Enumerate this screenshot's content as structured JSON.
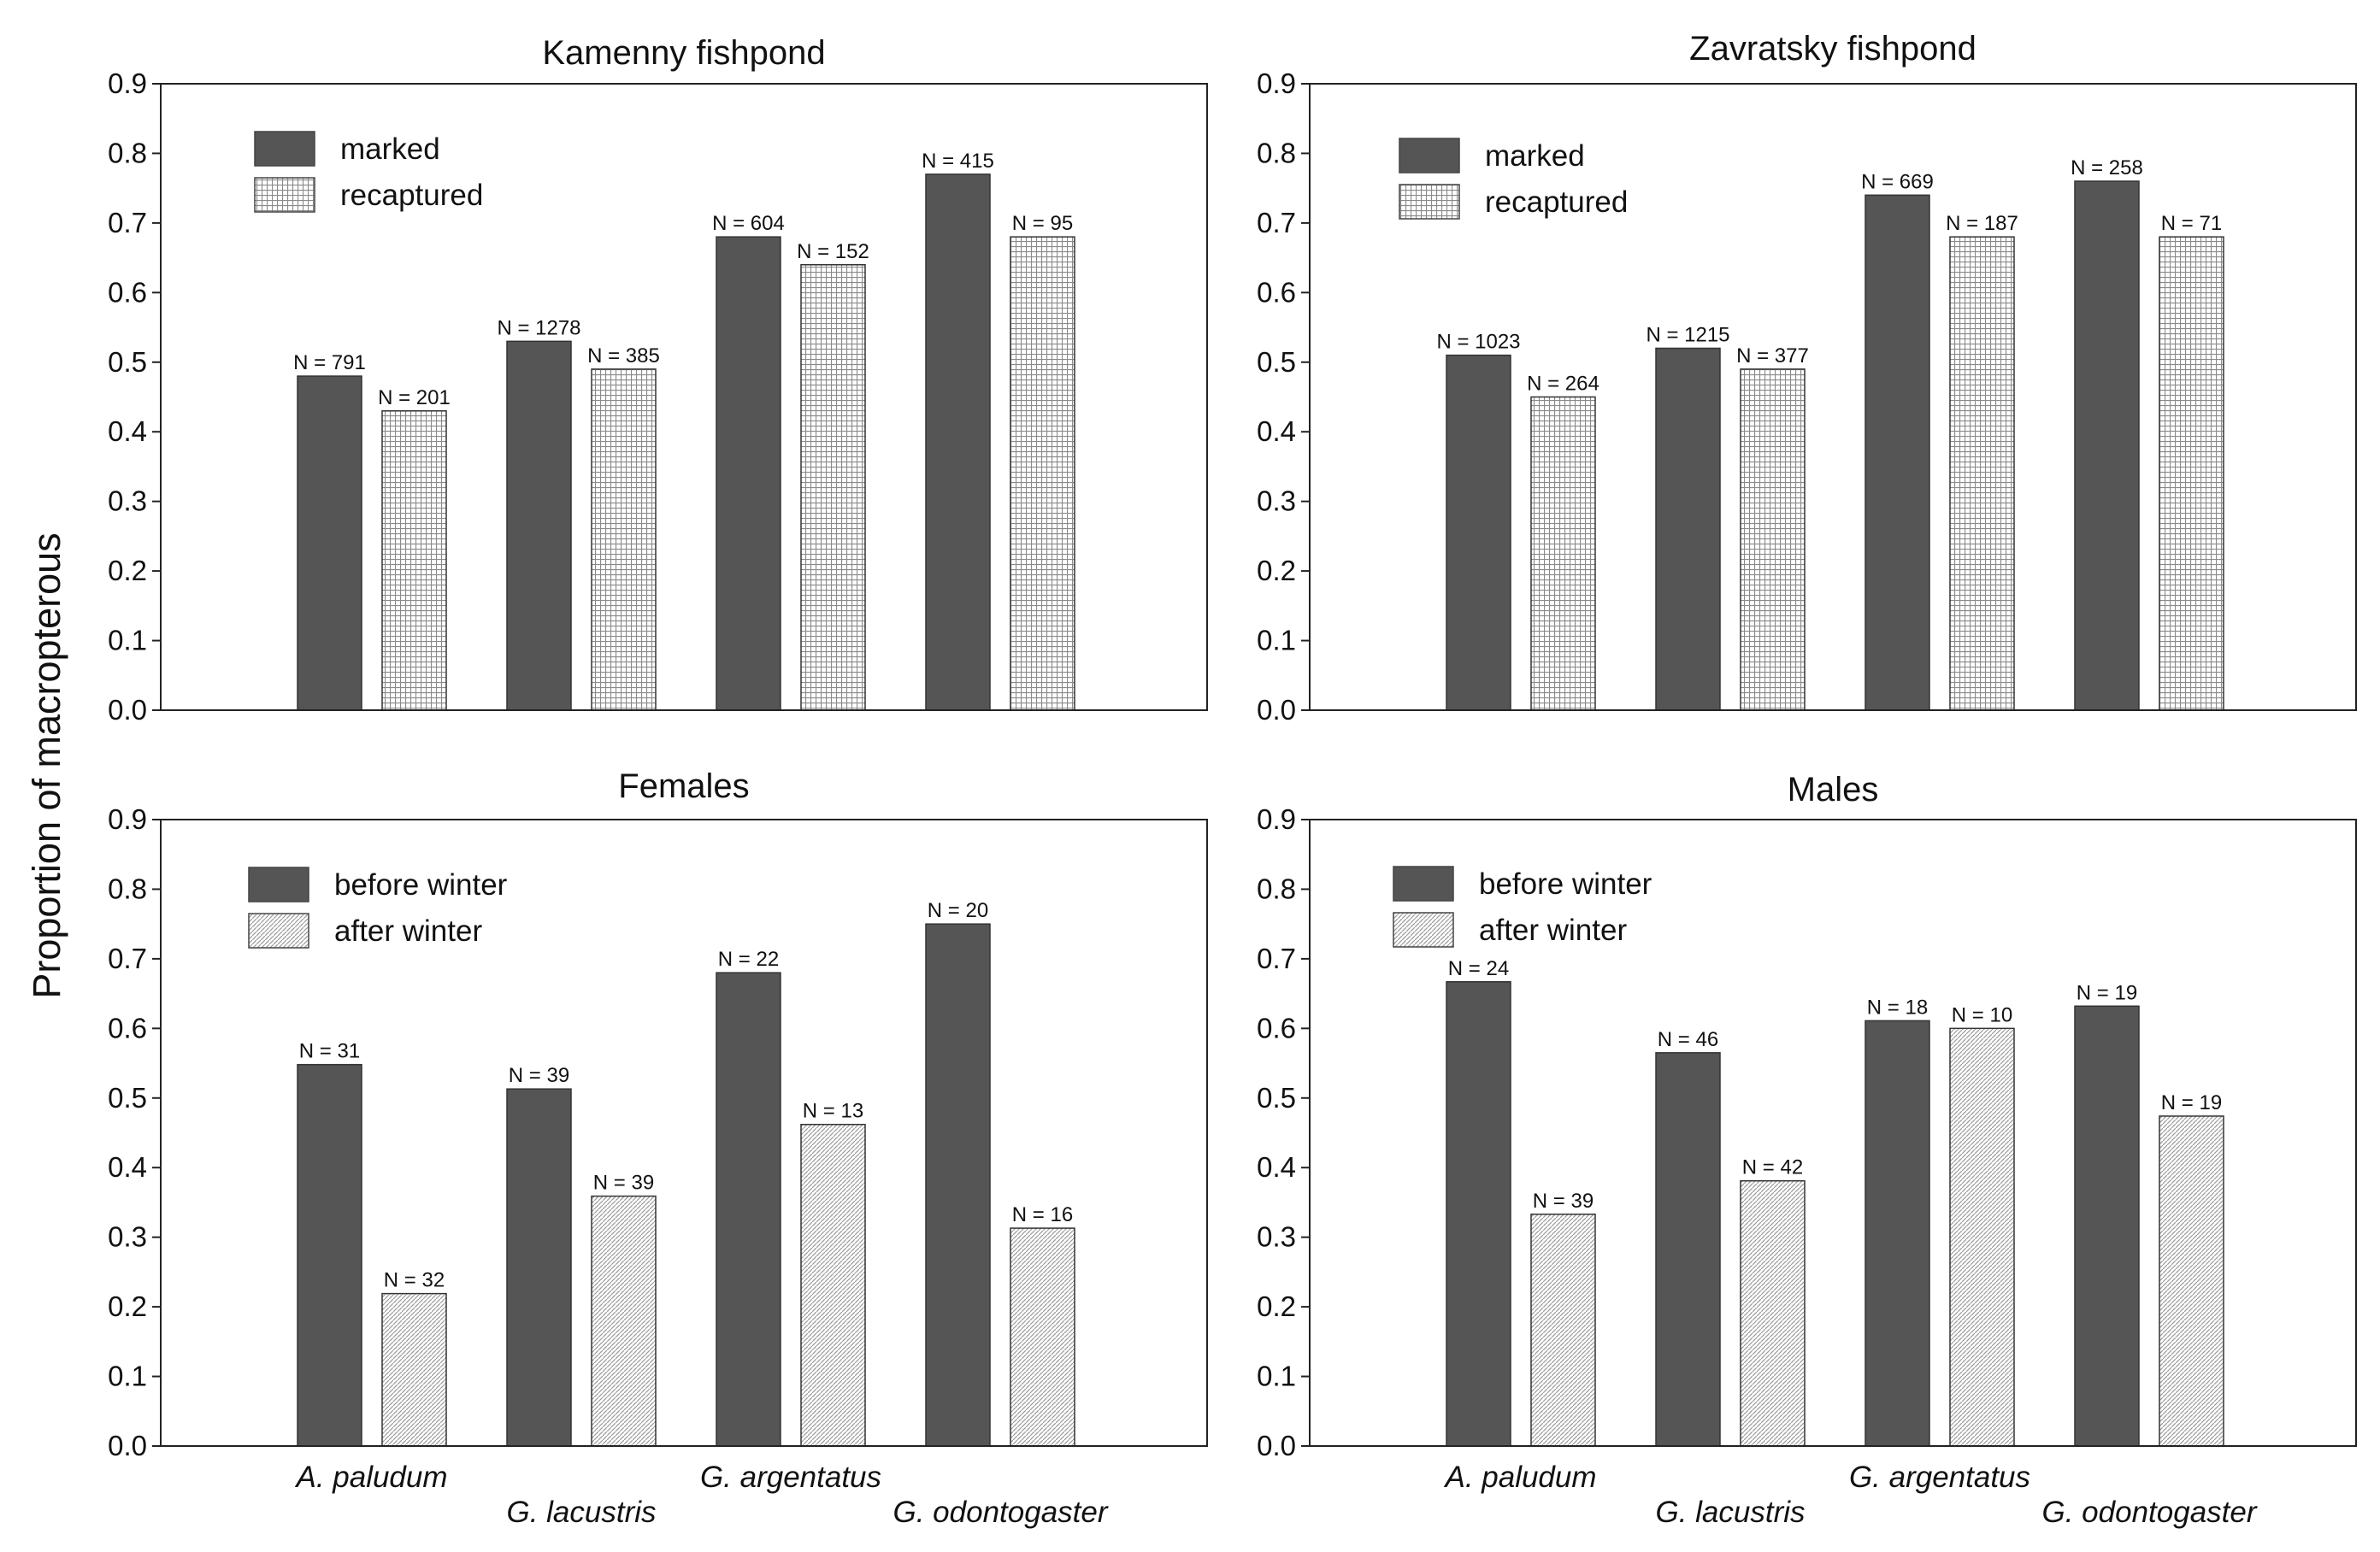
{
  "y_axis_label": "Proportion of macropterous",
  "chart_data": [
    {
      "type": "bar",
      "title": "Kamenny fishpond",
      "categories": [
        "A. paludum",
        "G. lacustris",
        "G. argentatus",
        "G. odontogaster"
      ],
      "ylim": [
        0,
        0.9
      ],
      "yticks": [
        "0.0",
        "0.1",
        "0.2",
        "0.3",
        "0.4",
        "0.5",
        "0.6",
        "0.7",
        "0.8",
        "0.9"
      ],
      "series": [
        {
          "name": "marked",
          "style": "solid",
          "values": [
            0.48,
            0.53,
            0.68,
            0.77
          ],
          "labels": [
            "N = 791",
            "N = 1278",
            "N = 604",
            "N = 415"
          ]
        },
        {
          "name": "recaptured",
          "style": "grid",
          "values": [
            0.43,
            0.49,
            0.64,
            0.68
          ],
          "labels": [
            "N = 201",
            "N = 385",
            "N = 152",
            "N = 95"
          ]
        }
      ]
    },
    {
      "type": "bar",
      "title": "Zavratsky fishpond",
      "categories": [
        "A. paludum",
        "G. lacustris",
        "G. argentatus",
        "G. odontogaster"
      ],
      "ylim": [
        0,
        0.9
      ],
      "yticks": [
        "0.0",
        "0.1",
        "0.2",
        "0.3",
        "0.4",
        "0.5",
        "0.6",
        "0.7",
        "0.8",
        "0.9"
      ],
      "series": [
        {
          "name": "marked",
          "style": "solid",
          "values": [
            0.51,
            0.52,
            0.74,
            0.76
          ],
          "labels": [
            "N = 1023",
            "N = 1215",
            "N = 669",
            "N = 258"
          ]
        },
        {
          "name": "recaptured",
          "style": "grid",
          "values": [
            0.45,
            0.49,
            0.68,
            0.68
          ],
          "labels": [
            "N = 264",
            "N = 377",
            "N = 187",
            "N = 71"
          ]
        }
      ]
    },
    {
      "type": "bar",
      "title": "Females",
      "categories": [
        "A. paludum",
        "G. lacustris",
        "G. argentatus",
        "G. odontogaster"
      ],
      "ylim": [
        0,
        0.9
      ],
      "yticks": [
        "0.0",
        "0.1",
        "0.2",
        "0.3",
        "0.4",
        "0.5",
        "0.6",
        "0.7",
        "0.8",
        "0.9"
      ],
      "series": [
        {
          "name": "before winter",
          "style": "solid",
          "values": [
            0.548,
            0.513,
            0.68,
            0.75
          ],
          "labels": [
            "N = 31",
            "N = 39",
            "N = 22",
            "N = 20"
          ]
        },
        {
          "name": "after winter",
          "style": "hatch",
          "values": [
            0.219,
            0.359,
            0.462,
            0.313
          ],
          "labels": [
            "N = 32",
            "N = 39",
            "N = 13",
            "N = 16"
          ]
        }
      ]
    },
    {
      "type": "bar",
      "title": "Males",
      "categories": [
        "A. paludum",
        "G. lacustris",
        "G. argentatus",
        "G. odontogaster"
      ],
      "ylim": [
        0,
        0.9
      ],
      "yticks": [
        "0.0",
        "0.1",
        "0.2",
        "0.3",
        "0.4",
        "0.5",
        "0.6",
        "0.7",
        "0.8",
        "0.9"
      ],
      "series": [
        {
          "name": "before winter",
          "style": "solid",
          "values": [
            0.667,
            0.565,
            0.611,
            0.632
          ],
          "labels": [
            "N = 24",
            "N = 46",
            "N = 18",
            "N = 19"
          ]
        },
        {
          "name": "after winter",
          "style": "hatch",
          "values": [
            0.333,
            0.381,
            0.6,
            0.474
          ],
          "labels": [
            "N = 39",
            "N = 42",
            "N = 10",
            "N = 19"
          ]
        }
      ]
    }
  ],
  "colors": {
    "solid": "#555555",
    "pattern_line": "#8a8a8a",
    "axis": "#222222"
  }
}
